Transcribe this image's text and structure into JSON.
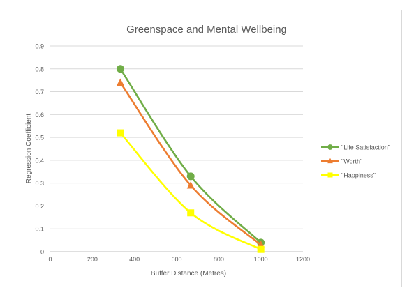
{
  "chart_data": {
    "type": "line",
    "title": "Greenspace and Mental Wellbeing",
    "xlabel": "Buffer Distance  (Metres)",
    "ylabel": "Regression Coefficient",
    "xlim": [
      0,
      1200
    ],
    "ylim": [
      0,
      0.9
    ],
    "x_ticks": [
      0,
      200,
      400,
      600,
      800,
      1000,
      1200
    ],
    "y_ticks": [
      0,
      0.1,
      0.2,
      0.3,
      0.4,
      0.5,
      0.6,
      0.7,
      0.8,
      0.9
    ],
    "grid": "horizontal",
    "legend_position": "right",
    "series": [
      {
        "name": "\"Life Satisfaction\"",
        "color": "#70ad47",
        "marker": "circle",
        "x": [
          333,
          667,
          1000
        ],
        "y": [
          0.8,
          0.33,
          0.04
        ]
      },
      {
        "name": "\"Worth\"",
        "color": "#ed7d31",
        "marker": "triangle",
        "x": [
          333,
          667,
          1000
        ],
        "y": [
          0.74,
          0.29,
          0.03
        ]
      },
      {
        "name": "\"Happiness\"",
        "color": "#ffff00",
        "marker": "square",
        "x": [
          333,
          667,
          1000
        ],
        "y": [
          0.52,
          0.17,
          0.01
        ]
      }
    ]
  }
}
